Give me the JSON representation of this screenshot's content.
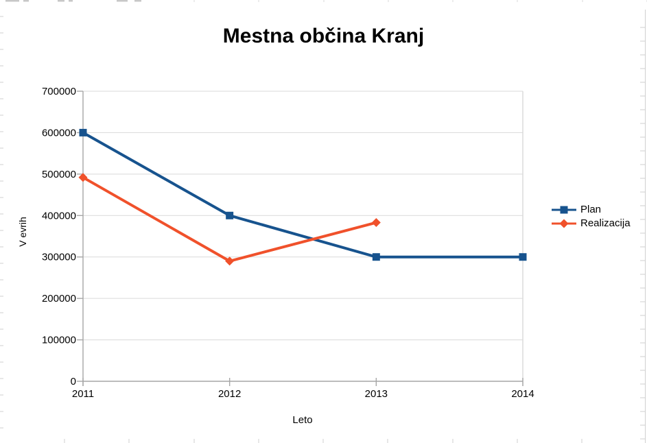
{
  "app": {
    "surface": "spreadsheet-canvas",
    "background": "#ffffff",
    "remnant_line_color": "#cfcfcf"
  },
  "chart_data": {
    "type": "line",
    "title": "Mestna občina Kranj",
    "xlabel": "Leto",
    "ylabel": "V evrih",
    "categories": [
      "2011",
      "2012",
      "2013",
      "2014"
    ],
    "series": [
      {
        "name": "Plan",
        "color": "#17538E",
        "marker": "square",
        "values": [
          600000,
          400000,
          300000,
          300000
        ]
      },
      {
        "name": "Realizacija",
        "color": "#F0512B",
        "marker": "diamond",
        "values": [
          492000,
          290000,
          383000,
          null
        ]
      }
    ],
    "ylim": [
      0,
      700000
    ],
    "y_tick_step": 100000,
    "y_tick_labels": [
      "0",
      "100000",
      "200000",
      "300000",
      "400000",
      "500000",
      "600000",
      "700000"
    ],
    "grid": true,
    "legend_position": "right",
    "legend_labels": [
      "Plan",
      "Realizacija"
    ],
    "axis_color": "#a6a6a6",
    "gridline_color": "#d9d9d9",
    "label_color": "#000000",
    "title_color": "#000000"
  }
}
